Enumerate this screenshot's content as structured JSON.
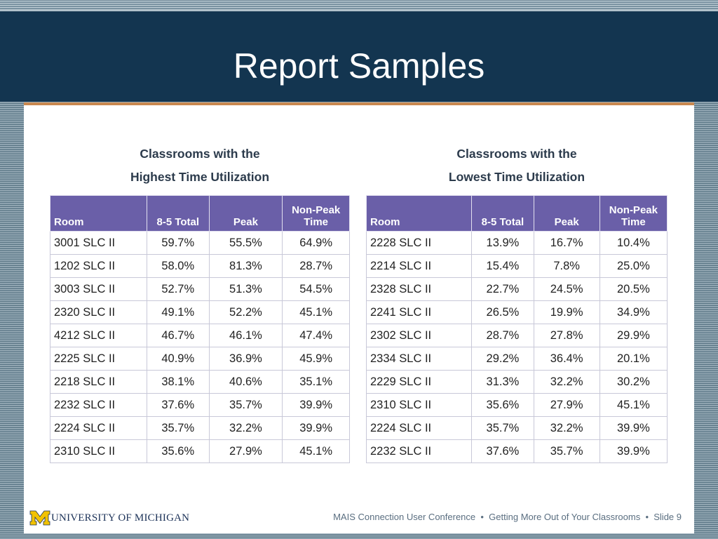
{
  "slide": {
    "title": "Report Samples",
    "footer": {
      "logo_letter": "M",
      "logo_text": "UNIVERSITY OF MICHIGAN",
      "conference": "MAIS Connection User Conference",
      "separator": "•",
      "talk": "Getting More Out of Your Classrooms",
      "slide_label": "Slide 9"
    }
  },
  "tables": [
    {
      "caption_line1": "Classrooms with the",
      "caption_line2": "Highest Time Utilization",
      "headers": {
        "room": "Room",
        "total": "8-5 Total",
        "peak": "Peak",
        "nonpeak_line1": "Non-Peak",
        "nonpeak_line2": "Time"
      },
      "rows": [
        [
          "3001 SLC II",
          "59.7%",
          "55.5%",
          "64.9%"
        ],
        [
          "1202 SLC II",
          "58.0%",
          "81.3%",
          "28.7%"
        ],
        [
          "3003 SLC II",
          "52.7%",
          "51.3%",
          "54.5%"
        ],
        [
          "2320 SLC II",
          "49.1%",
          "52.2%",
          "45.1%"
        ],
        [
          "4212 SLC II",
          "46.7%",
          "46.1%",
          "47.4%"
        ],
        [
          "2225 SLC II",
          "40.9%",
          "36.9%",
          "45.9%"
        ],
        [
          "2218 SLC II",
          "38.1%",
          "40.6%",
          "35.1%"
        ],
        [
          "2232 SLC II",
          "37.6%",
          "35.7%",
          "39.9%"
        ],
        [
          "2224 SLC II",
          "35.7%",
          "32.2%",
          "39.9%"
        ],
        [
          "2310 SLC II",
          "35.6%",
          "27.9%",
          "45.1%"
        ]
      ]
    },
    {
      "caption_line1": "Classrooms with the",
      "caption_line2": "Lowest Time Utilization",
      "headers": {
        "room": "Room",
        "total": "8-5 Total",
        "peak": "Peak",
        "nonpeak_line1": "Non-Peak",
        "nonpeak_line2": "Time"
      },
      "rows": [
        [
          "2228 SLC II",
          "13.9%",
          "16.7%",
          "10.4%"
        ],
        [
          "2214 SLC II",
          "15.4%",
          "7.8%",
          "25.0%"
        ],
        [
          "2328 SLC II",
          "22.7%",
          "24.5%",
          "20.5%"
        ],
        [
          "2241 SLC II",
          "26.5%",
          "19.9%",
          "34.9%"
        ],
        [
          "2302 SLC II",
          "28.7%",
          "27.8%",
          "29.9%"
        ],
        [
          "2334 SLC II",
          "29.2%",
          "36.4%",
          "20.1%"
        ],
        [
          "2229 SLC II",
          "31.3%",
          "32.2%",
          "30.2%"
        ],
        [
          "2310 SLC II",
          "35.6%",
          "27.9%",
          "45.1%"
        ],
        [
          "2224 SLC II",
          "35.7%",
          "32.2%",
          "39.9%"
        ],
        [
          "2232 SLC II",
          "37.6%",
          "35.7%",
          "39.9%"
        ]
      ]
    }
  ]
}
